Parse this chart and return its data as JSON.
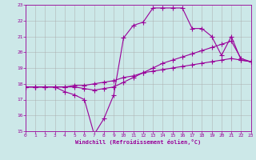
{
  "xlabel": "Windchill (Refroidissement éolien,°C)",
  "bg_color": "#cce8e8",
  "line_color": "#990099",
  "grid_color": "#aaaaaa",
  "xmin": 0,
  "xmax": 23,
  "ymin": 15,
  "ymax": 23,
  "xticks": [
    0,
    1,
    2,
    3,
    4,
    5,
    6,
    7,
    8,
    9,
    10,
    11,
    12,
    13,
    14,
    15,
    16,
    17,
    18,
    19,
    20,
    21,
    22,
    23
  ],
  "yticks": [
    15,
    16,
    17,
    18,
    19,
    20,
    21,
    22,
    23
  ],
  "series": [
    {
      "x": [
        0,
        1,
        2,
        3,
        4,
        5,
        6,
        7,
        8,
        9,
        10,
        11,
        12,
        13,
        14,
        15,
        16,
        17,
        18,
        19,
        20,
        21,
        22,
        23
      ],
      "y": [
        17.8,
        17.8,
        17.8,
        17.8,
        17.5,
        17.3,
        17.0,
        14.8,
        15.8,
        17.3,
        20.9,
        21.7,
        21.9,
        22.8,
        22.8,
        22.8,
        22.8,
        21.5,
        21.5,
        21.0,
        19.8,
        21.0,
        19.5,
        19.4
      ]
    },
    {
      "x": [
        0,
        1,
        2,
        3,
        4,
        5,
        6,
        7,
        8,
        9,
        10,
        11,
        12,
        13,
        14,
        15,
        16,
        17,
        18,
        19,
        20,
        21,
        22,
        23
      ],
      "y": [
        17.8,
        17.8,
        17.8,
        17.8,
        17.8,
        17.8,
        17.7,
        17.6,
        17.7,
        17.8,
        18.1,
        18.4,
        18.7,
        19.0,
        19.3,
        19.5,
        19.7,
        19.9,
        20.1,
        20.3,
        20.5,
        20.7,
        19.6,
        19.4
      ]
    },
    {
      "x": [
        0,
        1,
        2,
        3,
        4,
        5,
        6,
        7,
        8,
        9,
        10,
        11,
        12,
        13,
        14,
        15,
        16,
        17,
        18,
        19,
        20,
        21,
        22,
        23
      ],
      "y": [
        17.8,
        17.8,
        17.8,
        17.8,
        17.8,
        17.9,
        17.9,
        18.0,
        18.1,
        18.2,
        18.4,
        18.5,
        18.7,
        18.8,
        18.9,
        19.0,
        19.1,
        19.2,
        19.3,
        19.4,
        19.5,
        19.6,
        19.5,
        19.4
      ]
    }
  ]
}
